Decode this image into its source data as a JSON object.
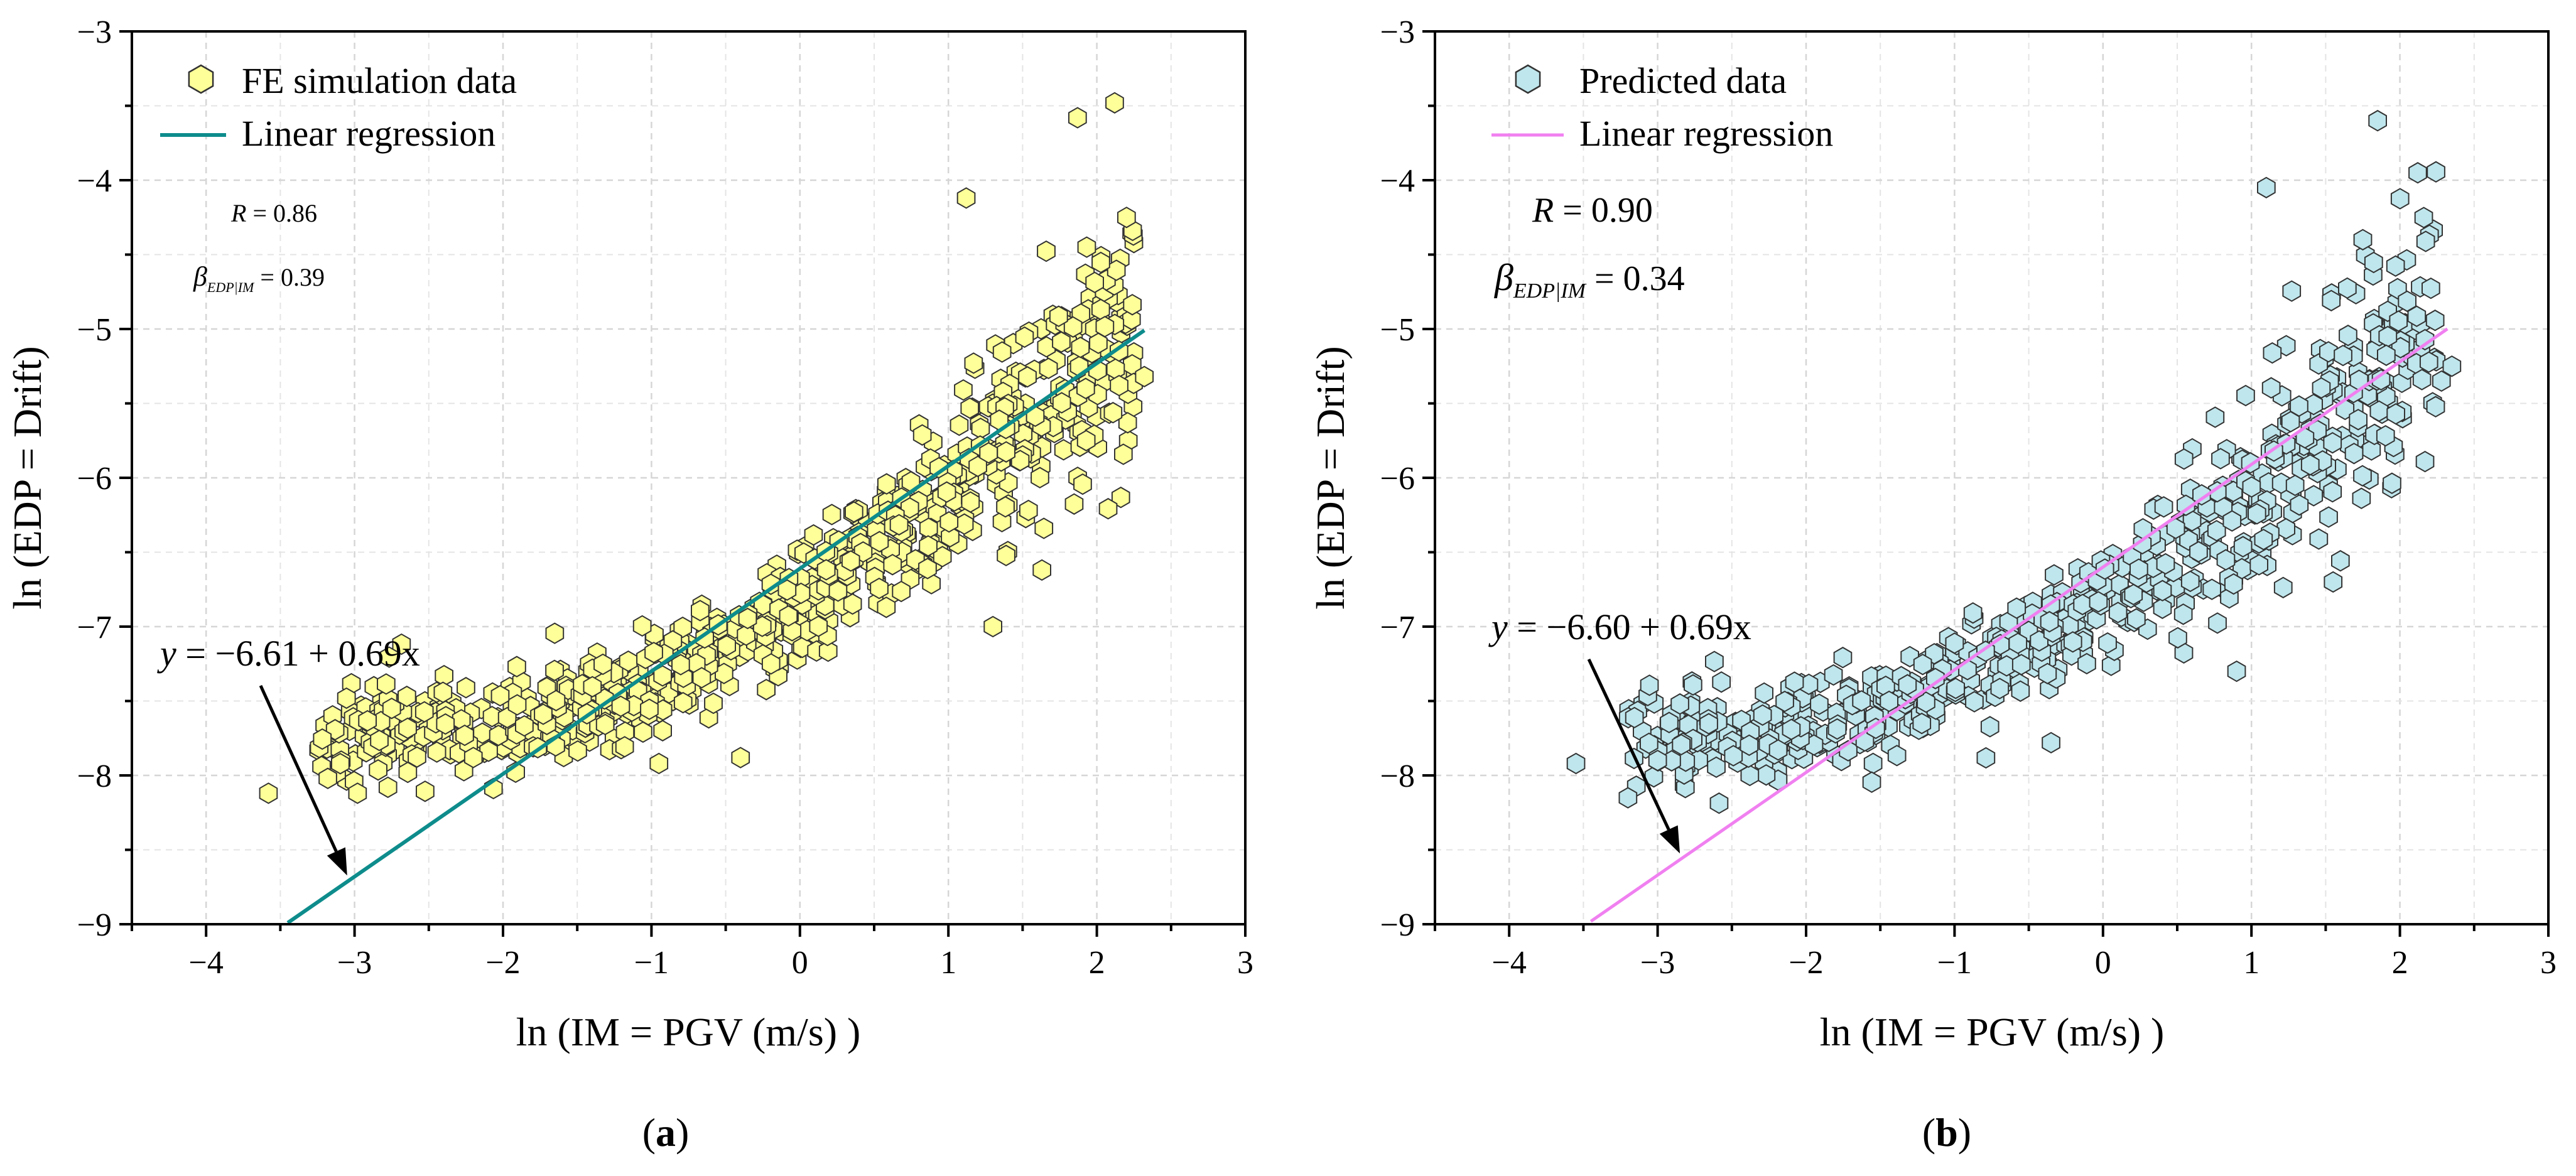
{
  "chart_data": [
    {
      "type": "scatter",
      "panel_label": "a",
      "xlabel": "ln (IM = PGV (m/s) )",
      "ylabel": "ln (EDP = Drift)",
      "xlim": [
        -4.5,
        3
      ],
      "ylim": [
        -9,
        -3
      ],
      "xticks": [
        -4,
        -3,
        -2,
        -1,
        0,
        1,
        2,
        3
      ],
      "yticks": [
        -9,
        -8,
        -7,
        -6,
        -5,
        -4,
        -3
      ],
      "grid": true,
      "legend": [
        "FE simulation data",
        "Linear regression"
      ],
      "legend_placement": "top-left",
      "marker_color": "#ffff99",
      "marker_edge": "#333333",
      "line_color": "#0e8c8c",
      "regression": {
        "intercept": -6.61,
        "slope": 0.69,
        "x_range": [
          -3.45,
          2.32
        ]
      },
      "stats": {
        "R": "0.86",
        "beta": "0.39"
      },
      "equation": {
        "y_label": "y",
        "text": " = −6.61 + 0.69x",
        "points_to_x": -3.05
      },
      "series": [
        {
          "name": "FE simulation data",
          "seed": 11,
          "n": 850,
          "x_range": [
            -3.6,
            2.35
          ],
          "min_y": -8.2,
          "max_y": -3.45,
          "extremes": [
            [
              -3.58,
              -8.12
            ],
            [
              -3.18,
              -8.02
            ],
            [
              -2.98,
              -8.12
            ],
            [
              -2.75,
              -7.55
            ],
            [
              2.12,
              -3.48
            ],
            [
              1.87,
              -3.58
            ],
            [
              2.2,
              -4.25
            ],
            [
              1.12,
              -4.12
            ],
            [
              1.63,
              -6.62
            ],
            [
              1.3,
              -7.0
            ],
            [
              2.32,
              -5.32
            ],
            [
              2.15,
              -5.38
            ],
            [
              -0.95,
              -7.92
            ],
            [
              -0.4,
              -7.88
            ]
          ]
        }
      ]
    },
    {
      "type": "scatter",
      "panel_label": "b",
      "xlabel": "ln (IM = PGV (m/s) )",
      "ylabel": "ln (EDP = Drift)",
      "xlim": [
        -4.5,
        3
      ],
      "ylim": [
        -9,
        -3
      ],
      "xticks": [
        -4,
        -3,
        -2,
        -1,
        0,
        1,
        2,
        3
      ],
      "yticks": [
        -9,
        -8,
        -7,
        -6,
        -5,
        -4,
        -3
      ],
      "grid": true,
      "legend": [
        "Predicted data",
        "Linear regression"
      ],
      "legend_placement": "top-left",
      "marker_color": "#bfe6ec",
      "marker_edge": "#333333",
      "line_color": "#f080f0",
      "regression": {
        "intercept": -6.6,
        "slope": 0.69,
        "x_range": [
          -3.45,
          2.32
        ]
      },
      "stats": {
        "R": "0.90",
        "beta": "0.34"
      },
      "equation": {
        "y_label": "y",
        "text": " = −6.60 + 0.69x",
        "points_to_x": -2.85
      },
      "series": [
        {
          "name": "Predicted data",
          "seed": 23,
          "n": 720,
          "x_range": [
            -3.6,
            2.35
          ],
          "min_y": -8.2,
          "max_y": -3.55,
          "extremes": [
            [
              -3.55,
              -7.92
            ],
            [
              -3.2,
              -8.15
            ],
            [
              -3.0,
              -7.9
            ],
            [
              -2.85,
              -7.52
            ],
            [
              1.85,
              -3.6
            ],
            [
              1.1,
              -4.05
            ],
            [
              2.12,
              -3.95
            ],
            [
              2.35,
              -5.25
            ],
            [
              2.28,
              -5.35
            ],
            [
              1.55,
              -6.7
            ],
            [
              -0.35,
              -7.78
            ],
            [
              0.9,
              -7.3
            ],
            [
              1.75,
              -4.4
            ]
          ]
        }
      ]
    }
  ]
}
